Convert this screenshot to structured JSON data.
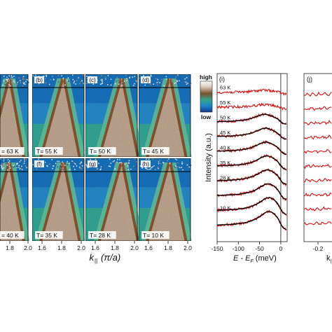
{
  "colorbar": {
    "high_label": "high",
    "low_label": "low"
  },
  "arpes_maps": {
    "x_tick_labels": [
      "1.8",
      "2.0",
      "1.6",
      "1.8",
      "2.0",
      "1.6",
      "1.8",
      "2.0",
      "1.6",
      "1.8",
      "2.0"
    ],
    "xlabel": "k",
    "xlabel_sub": "||",
    "xlabel_unit": "(π/a)",
    "panels": [
      {
        "letter": "",
        "temperature": "= 63 K",
        "dispersion_shift": 0.0
      },
      {
        "letter": "(b)",
        "temperature": "T= 55 K",
        "dispersion_shift": 0.0
      },
      {
        "letter": "(c)",
        "temperature": "T= 50 K",
        "dispersion_shift": 0.05
      },
      {
        "letter": "(d)",
        "temperature": "T= 45 K",
        "dispersion_shift": 0.0
      },
      {
        "letter": "",
        "temperature": "= 40 K",
        "dispersion_shift": 0.0
      },
      {
        "letter": "(f)",
        "temperature": "T= 35 K",
        "dispersion_shift": 0.0
      },
      {
        "letter": "(g)",
        "temperature": "T= 28 K",
        "dispersion_shift": 0.05
      },
      {
        "letter": "(h)",
        "temperature": "T= 10 K",
        "dispersion_shift": 0.0
      }
    ]
  },
  "chart_data": [
    {
      "type": "line",
      "panel": "(i)",
      "xlabel": "E - E",
      "xlabel_sub": "F",
      "xlabel_unit": " (meV)",
      "ylabel": "Intensity (a.u.)",
      "xlim": [
        -150,
        15
      ],
      "x_ticks": [
        -150,
        -100,
        -50,
        0
      ],
      "x_tick_labels": [
        "-150",
        "-100",
        "-50",
        "0"
      ],
      "series": [
        {
          "name": "63 K",
          "offset": 9,
          "fit": false,
          "peak": -40
        },
        {
          "name": "55 K",
          "offset": 8,
          "fit": false,
          "peak": -40
        },
        {
          "name": "50 K",
          "offset": 7,
          "fit": true,
          "peak": -38
        },
        {
          "name": "45 K",
          "offset": 6,
          "fit": true,
          "peak": -36
        },
        {
          "name": "40 K",
          "offset": 5,
          "fit": true,
          "peak": -35
        },
        {
          "name": "35 K",
          "offset": 4,
          "fit": true,
          "peak": -33
        },
        {
          "name": "28 K",
          "offset": 3,
          "fit": true,
          "peak": -32
        },
        {
          "name": "",
          "offset": 2,
          "fit": true,
          "peak": -30
        },
        {
          "name": "10 K",
          "offset": 1,
          "fit": true,
          "peak": -28
        },
        {
          "name": "",
          "offset": 0,
          "fit": true,
          "peak": -28
        }
      ]
    },
    {
      "type": "line",
      "panel": "(j)",
      "xlabel": "k",
      "xlabel_sub": "||",
      "x_tick_labels": [
        "-0.2"
      ],
      "series_count": 10
    }
  ]
}
